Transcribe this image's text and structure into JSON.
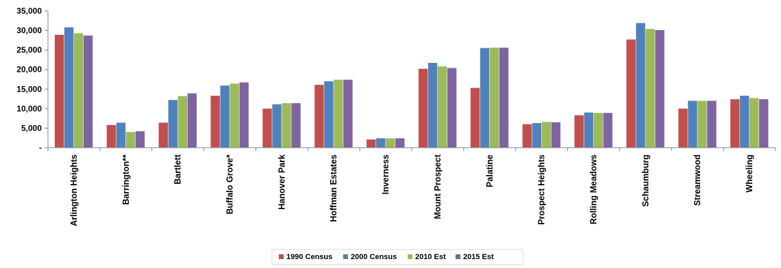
{
  "chart_data": {
    "type": "bar",
    "categories": [
      "Arlington Heights",
      "Barrington**",
      "Bartlett",
      "Buffalo Grove*",
      "Hanover Park",
      "Hoffman Estates",
      "Inverness",
      "Mount Prospect",
      "Palatine",
      "Prospect Heights",
      "Rolling Meadows",
      "Schaumburg",
      "Streamwood",
      "Wheeling"
    ],
    "series": [
      {
        "name": "1990 Census",
        "color": "#c0504d",
        "values": [
          28900,
          5800,
          6400,
          13300,
          10000,
          16100,
          2100,
          20200,
          15300,
          6000,
          8300,
          27700,
          10000,
          12400
        ]
      },
      {
        "name": "2000 Census",
        "color": "#4f81bd",
        "values": [
          30800,
          6400,
          12200,
          15900,
          11100,
          17000,
          2400,
          21700,
          25500,
          6300,
          9000,
          31900,
          12000,
          13300
        ]
      },
      {
        "name": "2010 Est",
        "color": "#9bbb59",
        "values": [
          29300,
          4000,
          13200,
          16400,
          11400,
          17400,
          2400,
          20800,
          25600,
          6600,
          8900,
          30400,
          12000,
          12700
        ]
      },
      {
        "name": "2015 Est",
        "color": "#8064a2",
        "values": [
          28700,
          4200,
          13900,
          16700,
          11400,
          17400,
          2400,
          20400,
          25600,
          6500,
          8900,
          30100,
          12000,
          12400
        ]
      }
    ],
    "y_ticks": [
      "-",
      "5,000",
      "10,000",
      "15,000",
      "20,000",
      "25,000",
      "30,000",
      "35,000"
    ],
    "ylim": [
      0,
      35000
    ],
    "grid": false,
    "legend_position": "bottom-center"
  }
}
